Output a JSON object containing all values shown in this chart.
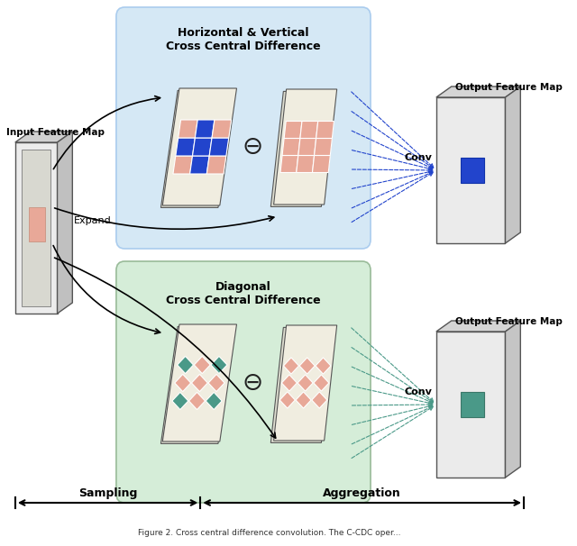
{
  "blue_color": "#2244CC",
  "pink_color": "#E8A898",
  "teal_color": "#4A9988",
  "light_blue_bg": "#D5E8F5",
  "light_green_bg": "#D5EDD8",
  "gray_face": "#E0E0E0",
  "gray_side_top": "#C8C8C8",
  "gray_side_right": "#B8B8B8",
  "panel_face": "#EEEAE0",
  "panel_shadow": "#D8D4C8",
  "white_face": "#F5F5F5",
  "sampling_label": "Sampling",
  "aggregation_label": "Aggregation",
  "top_box_title": "Horizontal & Vertical\nCross Central Difference",
  "bottom_box_title": "Diagonal\nCross Central Difference",
  "input_label": "Input Feature Map",
  "output_top_label": "Output Feature Map",
  "output_bottom_label": "Output Feature Map",
  "expand_label": "Expand",
  "conv_top_label": "Conv",
  "conv_bot_label": "Conv"
}
